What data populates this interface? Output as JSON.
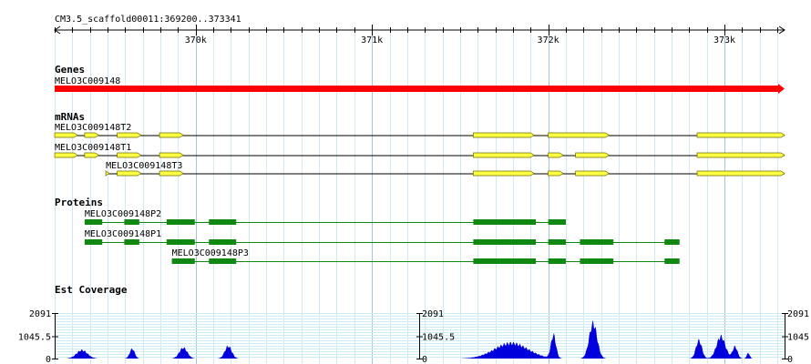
{
  "ruler": {
    "label": "CM3.5_scaffold00011:369200..373341",
    "start": 369200,
    "end": 373341,
    "ticks": [
      {
        "pos": 370000,
        "label": "370k"
      },
      {
        "pos": 371000,
        "label": "371k"
      },
      {
        "pos": 372000,
        "label": "372k"
      },
      {
        "pos": 373000,
        "label": "373k"
      }
    ]
  },
  "tracks": {
    "genes": {
      "title": "Genes",
      "items": [
        {
          "name": "MELO3C009148",
          "start": 369200,
          "end": 373341,
          "color": "#ff0000"
        }
      ]
    },
    "mrnas": {
      "title": "mRNAs",
      "color": "#ffff44",
      "items": [
        {
          "name": "MELO3C009148T2",
          "start": 369200,
          "end": 373341,
          "exons": [
            [
              369200,
              369330
            ],
            [
              369370,
              369450
            ],
            [
              369555,
              369690
            ],
            [
              369795,
              369930
            ],
            [
              371575,
              371920
            ],
            [
              372000,
              372345
            ],
            [
              372845,
              373341
            ]
          ]
        },
        {
          "name": "MELO3C009148T1",
          "start": 369200,
          "end": 373341,
          "exons": [
            [
              369200,
              369330
            ],
            [
              369370,
              369450
            ],
            [
              369555,
              369690
            ],
            [
              369795,
              369930
            ],
            [
              371575,
              371920
            ],
            [
              372000,
              372085
            ],
            [
              372155,
              372345
            ],
            [
              372845,
              373341
            ]
          ]
        },
        {
          "name": "MELO3C009148T3",
          "start": 369490,
          "end": 373341,
          "exons": [
            [
              369490,
              369510
            ],
            [
              369555,
              369690
            ],
            [
              369795,
              369930
            ],
            [
              371575,
              371920
            ],
            [
              372000,
              372085
            ],
            [
              372155,
              372345
            ],
            [
              372845,
              373341
            ]
          ]
        }
      ]
    },
    "proteins": {
      "title": "Proteins",
      "color": "#118811",
      "items": [
        {
          "name": "MELO3C009148P2",
          "start": 369370,
          "end": 372100,
          "exons": [
            [
              369370,
              369470
            ],
            [
              369595,
              369680
            ],
            [
              369835,
              369995
            ],
            [
              370075,
              370230
            ],
            [
              371575,
              371930
            ],
            [
              372000,
              372100
            ]
          ]
        },
        {
          "name": "MELO3C009148P1",
          "start": 369370,
          "end": 372745,
          "exons": [
            [
              369370,
              369470
            ],
            [
              369595,
              369680
            ],
            [
              369835,
              369995
            ],
            [
              370075,
              370230
            ],
            [
              371575,
              371930
            ],
            [
              372000,
              372100
            ],
            [
              372180,
              372370
            ],
            [
              372660,
              372745
            ]
          ]
        },
        {
          "name": "MELO3C009148P3",
          "start": 369865,
          "end": 372745,
          "exons": [
            [
              369865,
              369995
            ],
            [
              370075,
              370230
            ],
            [
              371575,
              371930
            ],
            [
              372000,
              372100
            ],
            [
              372180,
              372370
            ],
            [
              372660,
              372745
            ]
          ]
        }
      ]
    },
    "coverage": {
      "title": "Est Coverage",
      "max_label": "2091",
      "mid_label": "1045.5",
      "zero_label": "0",
      "max": 2091,
      "color": "#0000dd",
      "peaks": [
        {
          "center": 369355,
          "width": 55,
          "height": 380
        },
        {
          "center": 369640,
          "width": 25,
          "height": 440
        },
        {
          "center": 369930,
          "width": 40,
          "height": 490
        },
        {
          "center": 370185,
          "width": 35,
          "height": 560
        },
        {
          "center": 371790,
          "width": 170,
          "height": 700
        },
        {
          "center": 372030,
          "width": 25,
          "height": 1050
        },
        {
          "center": 372255,
          "width": 40,
          "height": 1600
        },
        {
          "center": 372855,
          "width": 30,
          "height": 820
        },
        {
          "center": 372980,
          "width": 45,
          "height": 1000
        },
        {
          "center": 373060,
          "width": 25,
          "height": 540
        },
        {
          "center": 373135,
          "width": 15,
          "height": 250
        }
      ]
    }
  }
}
